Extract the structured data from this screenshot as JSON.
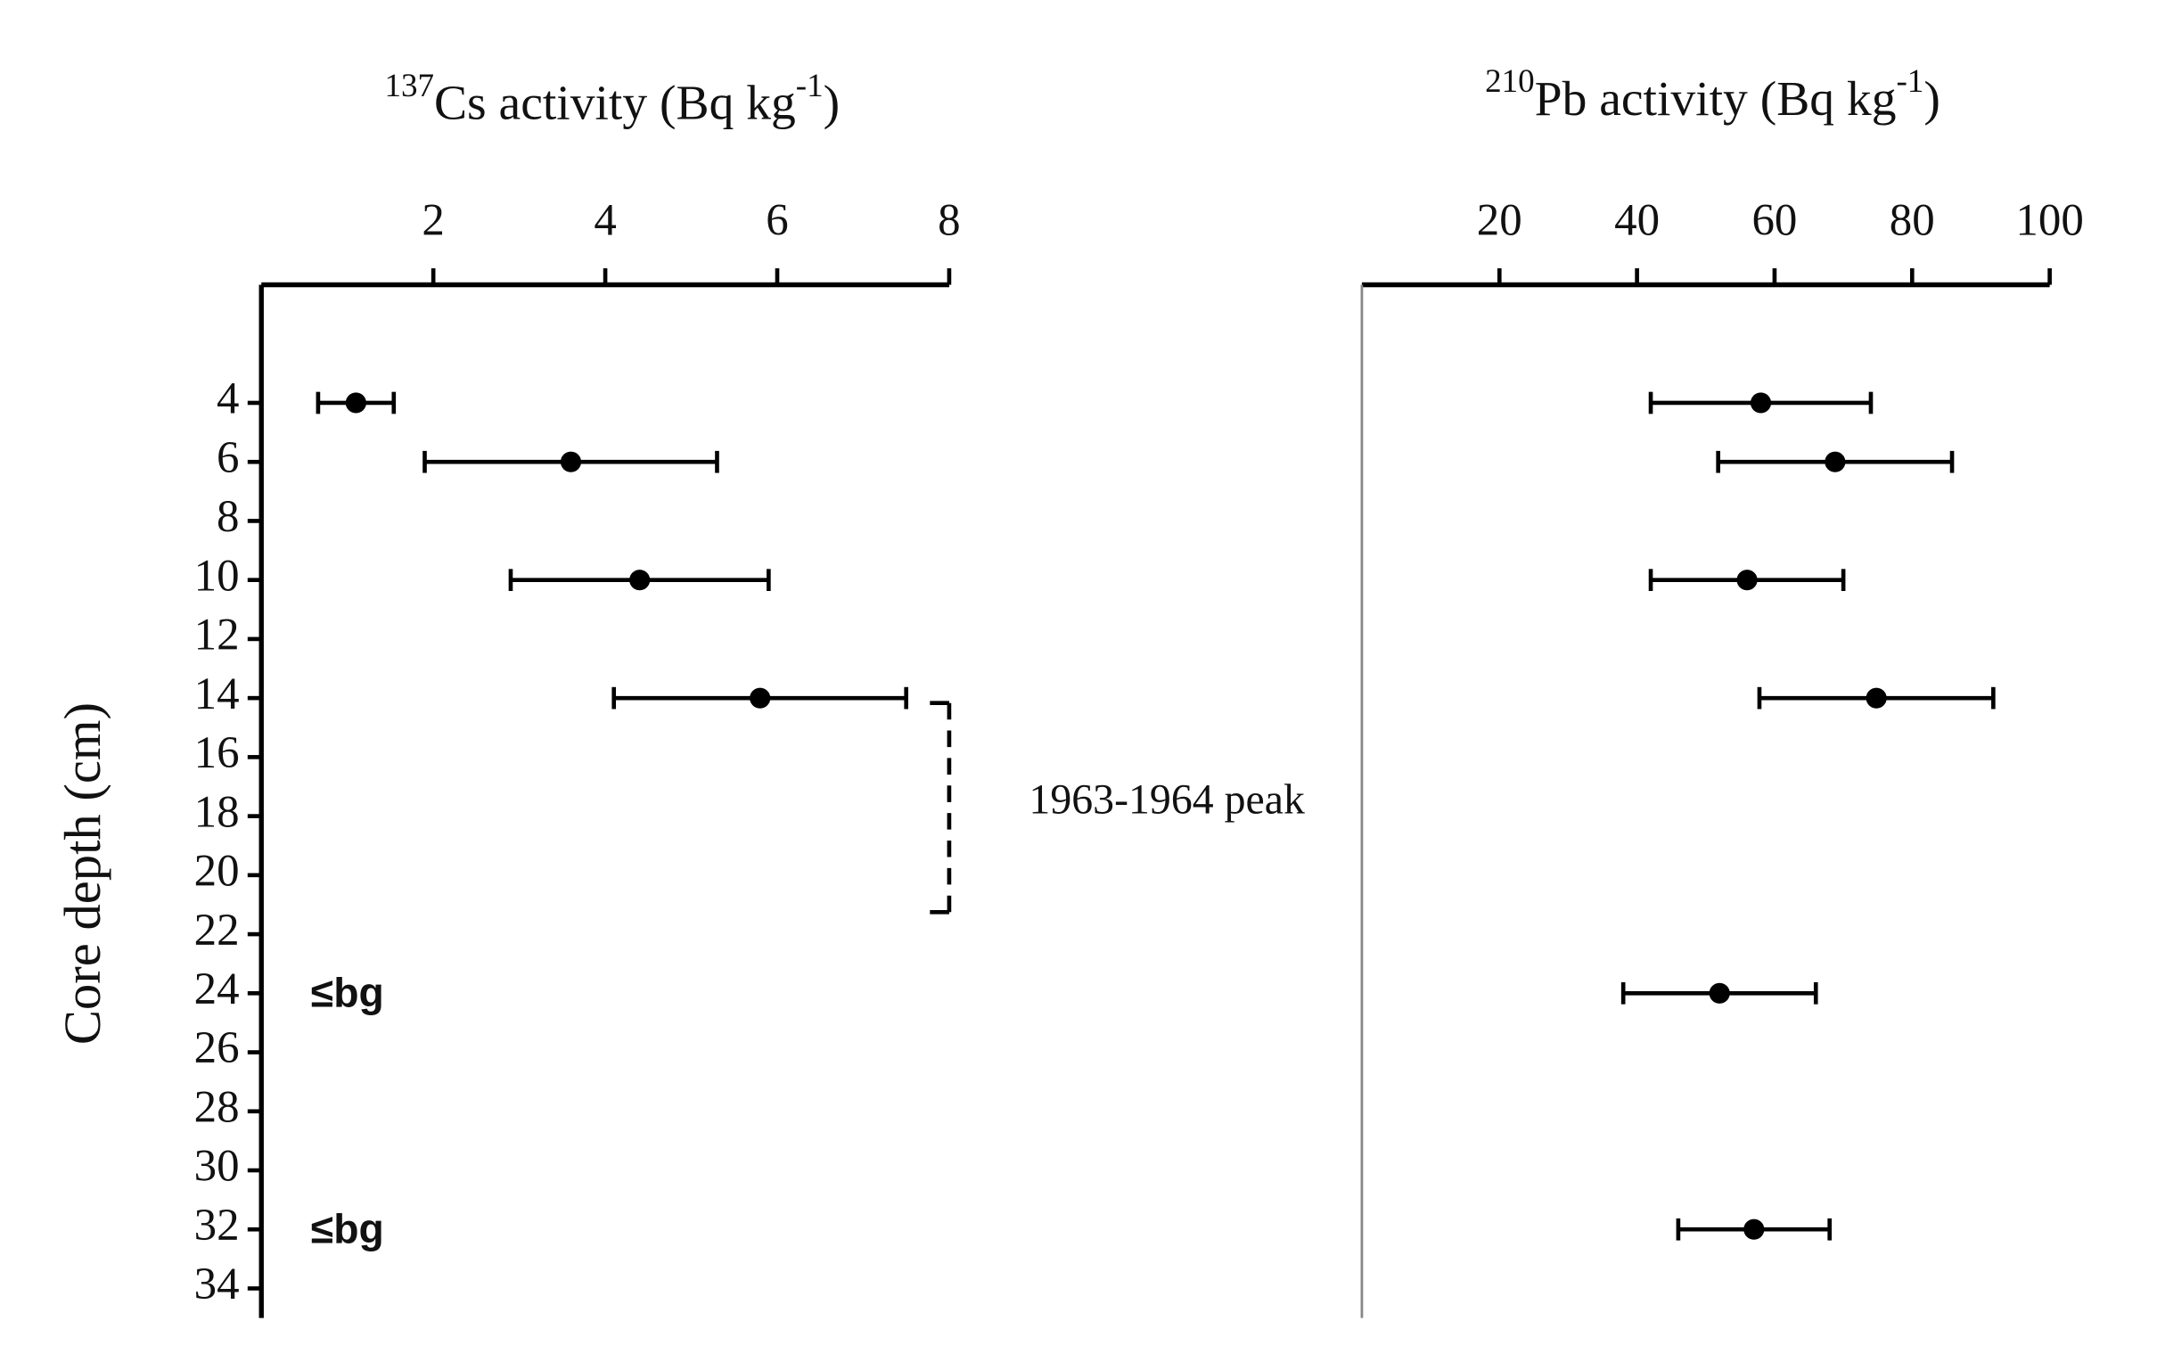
{
  "chart_data": [
    {
      "type": "errorbar",
      "title_parts": [
        "137",
        "Cs activity (Bq kg",
        "-1",
        ")"
      ],
      "ylabel": "Core depth (cm)",
      "annotation": "1963-1964 peak",
      "y": [
        4,
        6,
        10,
        14,
        24,
        32
      ],
      "values": [
        1.1,
        3.6,
        4.4,
        5.8,
        null,
        null
      ],
      "errors": [
        0.44,
        1.7,
        1.5,
        1.7,
        null,
        null
      ],
      "value_labels": [
        null,
        null,
        null,
        null,
        "≤bg",
        "≤bg"
      ],
      "color": "#000000",
      "xlim": [
        0,
        8
      ],
      "xticks": [
        2,
        4,
        6,
        8
      ],
      "ylim": [
        0,
        35
      ],
      "yticks": [
        4,
        6,
        8,
        10,
        12,
        14,
        16,
        18,
        20,
        22,
        24,
        26,
        28,
        30,
        32,
        34
      ]
    },
    {
      "type": "errorbar",
      "title_parts": [
        "210",
        "Pb activity (Bq kg",
        "-1",
        ")"
      ],
      "y": [
        4,
        6,
        10,
        14,
        24,
        32
      ],
      "values": [
        58,
        68.8,
        56,
        74.8,
        52,
        57
      ],
      "errors": [
        16,
        17,
        14,
        17,
        14,
        11
      ],
      "color": "#000000",
      "xlim": [
        0,
        100
      ],
      "xticks": [
        20,
        40,
        60,
        80,
        100
      ],
      "ylim": [
        0,
        35
      ]
    }
  ]
}
